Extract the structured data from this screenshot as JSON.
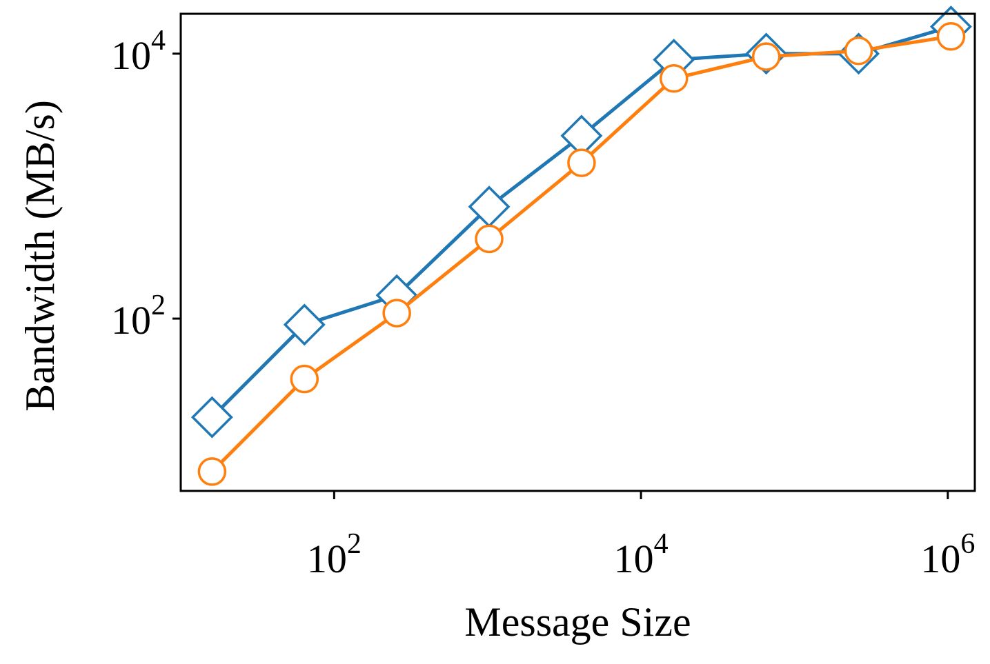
{
  "chart_data": {
    "type": "line",
    "xlabel": "Message Size",
    "ylabel": "Bandwidth (MB/s)",
    "xscale": "log",
    "yscale": "log",
    "xlim": [
      10,
      1500000
    ],
    "ylim": [
      5,
      20000
    ],
    "x_ticks": [
      {
        "value": 100,
        "base": "10",
        "exp": "2"
      },
      {
        "value": 10000,
        "base": "10",
        "exp": "4"
      },
      {
        "value": 1000000,
        "base": "10",
        "exp": "6"
      }
    ],
    "y_ticks": [
      {
        "value": 100,
        "base": "10",
        "exp": "2"
      },
      {
        "value": 10000,
        "base": "10",
        "exp": "4"
      }
    ],
    "grid": false,
    "legend": "none",
    "x": [
      16,
      64,
      256,
      1024,
      4096,
      16384,
      65536,
      262144,
      1048576
    ],
    "series": [
      {
        "marker": "diamond",
        "color": "#1f77b4",
        "values": [
          18,
          90,
          150,
          700,
          2400,
          9000,
          10000,
          10000,
          16000
        ]
      },
      {
        "marker": "circle",
        "color": "#ff7f0e",
        "values": [
          7,
          35,
          110,
          400,
          1500,
          6500,
          9500,
          10500,
          13500
        ]
      }
    ]
  }
}
